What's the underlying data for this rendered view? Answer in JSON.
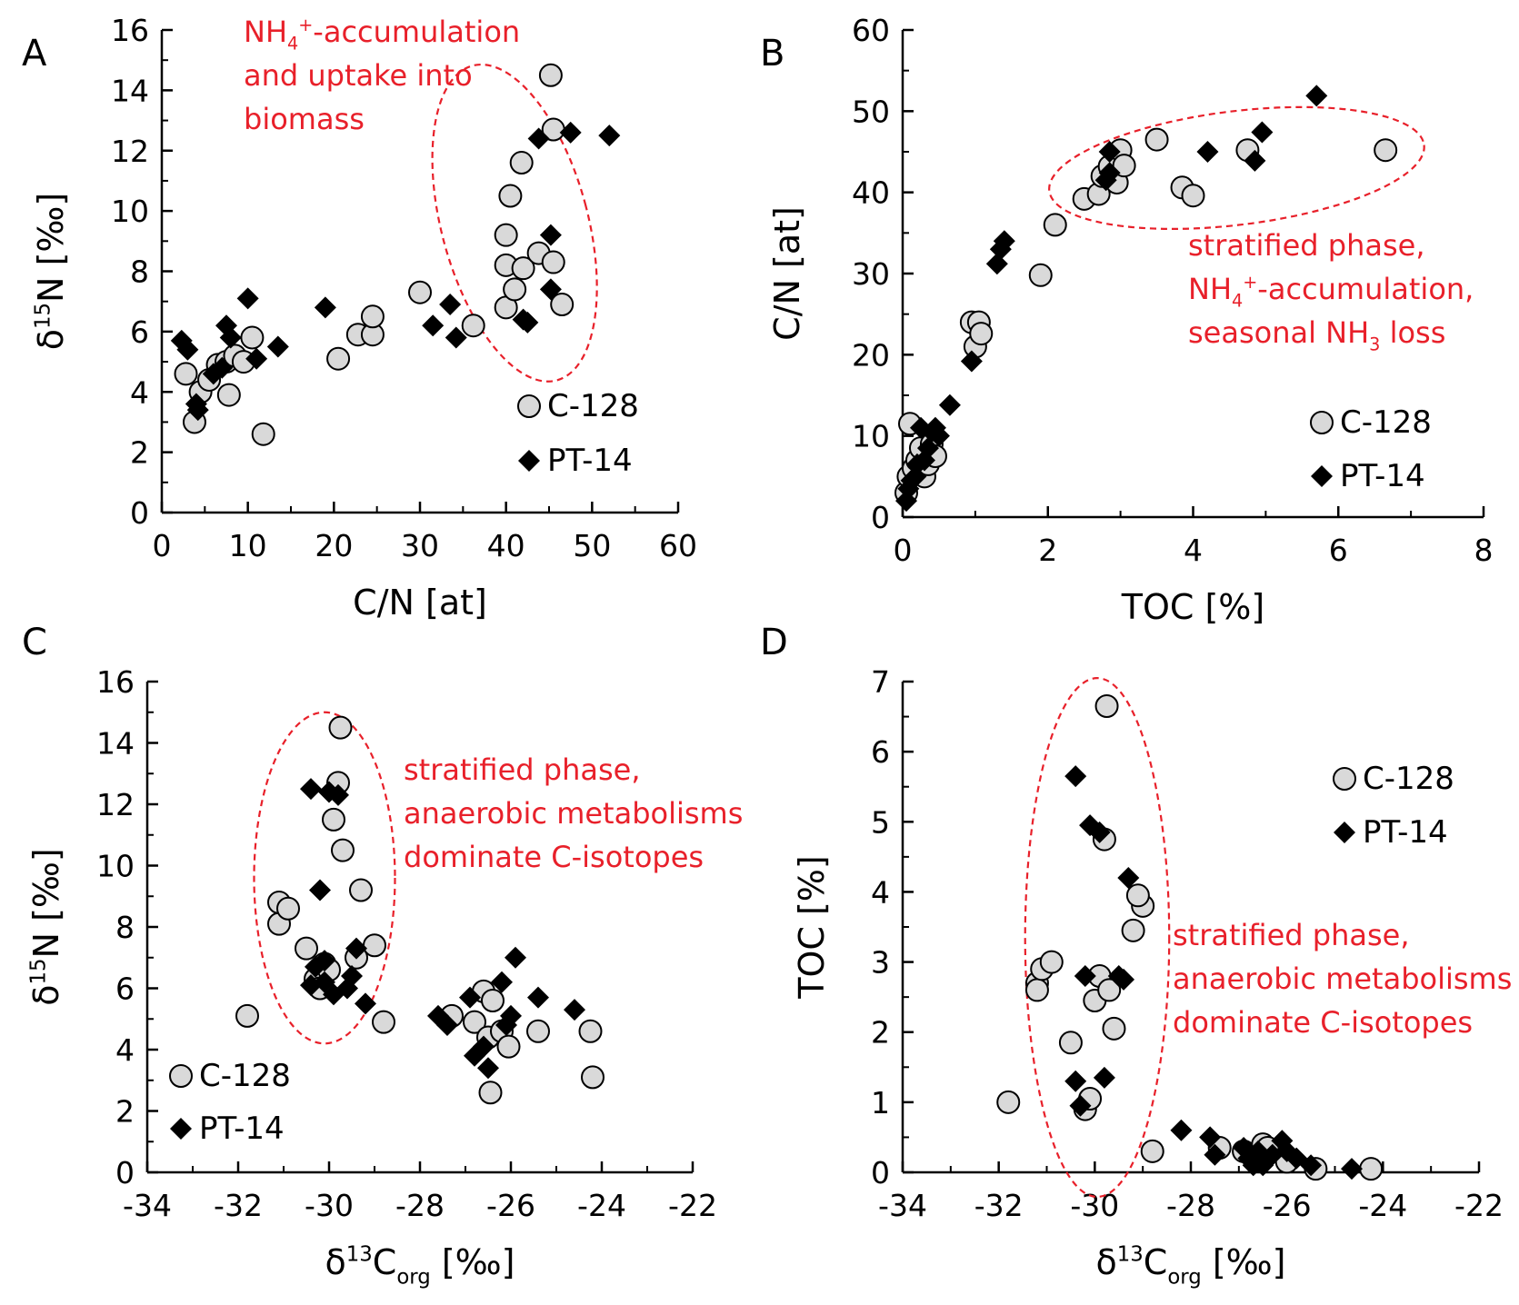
{
  "colors": {
    "axis": "#000000",
    "annotation": "#e8202a",
    "c128_fill": "#d9d9d9",
    "c128_stroke": "#000000",
    "pt14_fill": "#000000"
  },
  "legend_labels": [
    "C-128",
    "PT-14"
  ],
  "chart_data": [
    {
      "panel": "A",
      "type": "scatter",
      "xlabel": "C/N [at]",
      "ylabel": "δ15N [‰]",
      "xlim": [
        0,
        60
      ],
      "ylim": [
        0,
        16
      ],
      "xticks": [
        0,
        10,
        20,
        30,
        40,
        50,
        60
      ],
      "yticks": [
        0,
        2,
        4,
        6,
        8,
        10,
        12,
        14,
        16
      ],
      "legend_position": "bottom-right",
      "annotation_lines": [
        "NH4+-accumulation",
        "and uptake into",
        "biomass"
      ],
      "ellipse": {
        "cx": 41,
        "cy": 9.6,
        "rx": 8.5,
        "ry": 5.4,
        "rotate": -15
      },
      "series": [
        {
          "name": "C-128",
          "marker": "circle",
          "points": [
            [
              2.8,
              4.6
            ],
            [
              3.8,
              3
            ],
            [
              4.5,
              4
            ],
            [
              5.5,
              4.4
            ],
            [
              6.5,
              4.9
            ],
            [
              7.5,
              5
            ],
            [
              7.8,
              3.9
            ],
            [
              8.5,
              5.2
            ],
            [
              9.5,
              5
            ],
            [
              10.5,
              5.8
            ],
            [
              11.8,
              2.6
            ],
            [
              20.5,
              5.1
            ],
            [
              22.8,
              5.9
            ],
            [
              24.5,
              5.9
            ],
            [
              24.5,
              6.5
            ],
            [
              30,
              7.3
            ],
            [
              36.2,
              6.2
            ],
            [
              40,
              6.8
            ],
            [
              40,
              8.2
            ],
            [
              40,
              9.2
            ],
            [
              40.5,
              10.5
            ],
            [
              41,
              7.4
            ],
            [
              41.8,
              11.6
            ],
            [
              42,
              8.1
            ],
            [
              43.8,
              8.6
            ],
            [
              45.2,
              14.5
            ],
            [
              45.5,
              12.7
            ],
            [
              45.5,
              8.3
            ],
            [
              46.5,
              6.9
            ]
          ]
        },
        {
          "name": "PT-14",
          "marker": "diamond",
          "points": [
            [
              2.3,
              5.7
            ],
            [
              3,
              5.4
            ],
            [
              4,
              3.6
            ],
            [
              4.2,
              3.4
            ],
            [
              6,
              4.6
            ],
            [
              7,
              4.8
            ],
            [
              7.5,
              6.2
            ],
            [
              8,
              5.8
            ],
            [
              10,
              7.1
            ],
            [
              11,
              5.1
            ],
            [
              13.5,
              5.5
            ],
            [
              19,
              6.8
            ],
            [
              31.5,
              6.2
            ],
            [
              33.5,
              6.9
            ],
            [
              34.2,
              5.8
            ],
            [
              42,
              6.4
            ],
            [
              42.5,
              6.3
            ],
            [
              43.8,
              12.4
            ],
            [
              45.2,
              9.2
            ],
            [
              45.2,
              7.4
            ],
            [
              47.5,
              12.6
            ],
            [
              52,
              12.5
            ]
          ]
        }
      ]
    },
    {
      "panel": "B",
      "type": "scatter",
      "xlabel": "TOC [%]",
      "ylabel": "C/N [at]",
      "xlim": [
        0,
        8
      ],
      "ylim": [
        0,
        60
      ],
      "xticks": [
        0,
        2,
        4,
        6,
        8
      ],
      "yticks": [
        0,
        10,
        20,
        30,
        40,
        50,
        60
      ],
      "legend_position": "bottom-right",
      "annotation_lines": [
        "stratified phase,",
        "NH4+-accumulation,",
        "seasonal NH3 loss"
      ],
      "ellipse": {
        "cx": 4.6,
        "cy": 43,
        "rx": 2.6,
        "ry": 7,
        "rotate": -7
      },
      "series": [
        {
          "name": "C-128",
          "marker": "circle",
          "points": [
            [
              0.05,
              3
            ],
            [
              0.08,
              5
            ],
            [
              0.1,
              11.5
            ],
            [
              0.15,
              6
            ],
            [
              0.2,
              7
            ],
            [
              0.25,
              8.5
            ],
            [
              0.3,
              5
            ],
            [
              0.35,
              6.5
            ],
            [
              0.4,
              9
            ],
            [
              0.45,
              7.5
            ],
            [
              0.95,
              24
            ],
            [
              1.05,
              24
            ],
            [
              1.0,
              21
            ],
            [
              1.08,
              22.6
            ],
            [
              1.9,
              29.8
            ],
            [
              2.1,
              36
            ],
            [
              2.5,
              39.2
            ],
            [
              2.7,
              39.8
            ],
            [
              2.75,
              42
            ],
            [
              2.85,
              43.2
            ],
            [
              2.95,
              41.2
            ],
            [
              3.0,
              45.2
            ],
            [
              3.05,
              43.3
            ],
            [
              3.5,
              46.5
            ],
            [
              3.85,
              40.6
            ],
            [
              4.0,
              39.6
            ],
            [
              4.75,
              45.2
            ],
            [
              6.65,
              45.2
            ]
          ]
        },
        {
          "name": "PT-14",
          "marker": "diamond",
          "points": [
            [
              0.05,
              2
            ],
            [
              0.08,
              3.5
            ],
            [
              0.12,
              4.5
            ],
            [
              0.18,
              5
            ],
            [
              0.2,
              6.5
            ],
            [
              0.25,
              11
            ],
            [
              0.3,
              7
            ],
            [
              0.35,
              8.5
            ],
            [
              0.4,
              10.5
            ],
            [
              0.45,
              11
            ],
            [
              0.5,
              10
            ],
            [
              0.65,
              13.8
            ],
            [
              0.95,
              19.2
            ],
            [
              1.3,
              31.2
            ],
            [
              1.35,
              33
            ],
            [
              1.4,
              34
            ],
            [
              2.8,
              41.5
            ],
            [
              2.85,
              42.4
            ],
            [
              2.85,
              45
            ],
            [
              4.2,
              45
            ],
            [
              4.85,
              43.9
            ],
            [
              4.95,
              47.4
            ],
            [
              5.7,
              51.9
            ]
          ]
        }
      ]
    },
    {
      "panel": "C",
      "type": "scatter",
      "xlabel": "δ13Corg [‰]",
      "ylabel": "δ15N [‰]",
      "xlim": [
        -34,
        -22
      ],
      "ylim": [
        0,
        16
      ],
      "xticks": [
        -34,
        -32,
        -30,
        -28,
        -26,
        -24,
        -22
      ],
      "yticks": [
        0,
        2,
        4,
        6,
        8,
        10,
        12,
        14,
        16
      ],
      "legend_position": "bottom-left",
      "annotation_lines": [
        "stratified phase,",
        "anaerobic metabolisms",
        "dominate C-isotopes"
      ],
      "ellipse": {
        "cx": -30.1,
        "cy": 9.6,
        "rx": 1.55,
        "ry": 5.4,
        "rotate": 0
      },
      "series": [
        {
          "name": "C-128",
          "marker": "circle",
          "points": [
            [
              -31.8,
              5.1
            ],
            [
              -31.1,
              8.1
            ],
            [
              -31.1,
              8.8
            ],
            [
              -30.9,
              8.6
            ],
            [
              -30.5,
              7.3
            ],
            [
              -30.3,
              6.3
            ],
            [
              -30.2,
              6
            ],
            [
              -30.1,
              6.8
            ],
            [
              -30,
              6.6
            ],
            [
              -29.9,
              11.5
            ],
            [
              -29.8,
              12.7
            ],
            [
              -29.75,
              14.5
            ],
            [
              -29.7,
              10.5
            ],
            [
              -29.4,
              7
            ],
            [
              -29.3,
              9.2
            ],
            [
              -29,
              7.4
            ],
            [
              -28.8,
              4.9
            ],
            [
              -27.3,
              5.1
            ],
            [
              -26.8,
              4.9
            ],
            [
              -26.6,
              5.9
            ],
            [
              -26.5,
              4.4
            ],
            [
              -26.45,
              2.6
            ],
            [
              -26.4,
              5.6
            ],
            [
              -26.2,
              4.6
            ],
            [
              -26.05,
              4.1
            ],
            [
              -25.4,
              4.6
            ],
            [
              -24.25,
              4.6
            ],
            [
              -24.2,
              3.1
            ]
          ]
        },
        {
          "name": "PT-14",
          "marker": "diamond",
          "points": [
            [
              -30.4,
              12.5
            ],
            [
              -30.4,
              6.1
            ],
            [
              -30.3,
              6.7
            ],
            [
              -30.2,
              9.2
            ],
            [
              -30.1,
              6.9
            ],
            [
              -30.1,
              6.2
            ],
            [
              -30,
              12.4
            ],
            [
              -29.9,
              5.8
            ],
            [
              -29.8,
              12.3
            ],
            [
              -29.6,
              6
            ],
            [
              -29.5,
              6.4
            ],
            [
              -29.4,
              7.3
            ],
            [
              -29.2,
              5.5
            ],
            [
              -27.6,
              5.1
            ],
            [
              -27.4,
              4.8
            ],
            [
              -26.9,
              5.7
            ],
            [
              -26.8,
              3.8
            ],
            [
              -26.6,
              4.1
            ],
            [
              -26.5,
              3.4
            ],
            [
              -26.2,
              6.2
            ],
            [
              -26.1,
              4.8
            ],
            [
              -26.0,
              5.1
            ],
            [
              -25.9,
              7.0
            ],
            [
              -25.4,
              5.7
            ],
            [
              -24.6,
              5.3
            ]
          ]
        }
      ]
    },
    {
      "panel": "D",
      "type": "scatter",
      "xlabel": "δ13Corg [‰]",
      "ylabel": "TOC [%]",
      "xlim": [
        -34,
        -22
      ],
      "ylim": [
        0,
        7
      ],
      "xticks": [
        -34,
        -32,
        -30,
        -28,
        -26,
        -24,
        -22
      ],
      "yticks": [
        0,
        1,
        2,
        3,
        4,
        5,
        6,
        7
      ],
      "legend_position": "top-right",
      "annotation_lines": [
        "stratified phase,",
        "anaerobic metabolisms",
        "dominate C-isotopes"
      ],
      "ellipse": {
        "cx": -29.95,
        "cy": 3.35,
        "rx": 1.5,
        "ry": 3.7,
        "rotate": 0
      },
      "series": [
        {
          "name": "C-128",
          "marker": "circle",
          "points": [
            [
              -31.8,
              1
            ],
            [
              -31.2,
              2.7
            ],
            [
              -31.2,
              2.6
            ],
            [
              -31.1,
              2.9
            ],
            [
              -30.9,
              3.0
            ],
            [
              -30.5,
              1.85
            ],
            [
              -30.2,
              0.9
            ],
            [
              -30.1,
              1.05
            ],
            [
              -30.0,
              2.45
            ],
            [
              -29.9,
              2.8
            ],
            [
              -29.8,
              4.75
            ],
            [
              -29.75,
              6.65
            ],
            [
              -29.7,
              2.6
            ],
            [
              -29.6,
              2.05
            ],
            [
              -29.0,
              3.8
            ],
            [
              -29.2,
              3.45
            ],
            [
              -29.1,
              3.95
            ],
            [
              -28.8,
              0.3
            ],
            [
              -27.4,
              0.35
            ],
            [
              -26.9,
              0.3
            ],
            [
              -26.6,
              0.2
            ],
            [
              -26.5,
              0.4
            ],
            [
              -26.4,
              0.35
            ],
            [
              -26.0,
              0.15
            ],
            [
              -25.4,
              0.05
            ],
            [
              -24.25,
              0.05
            ]
          ]
        },
        {
          "name": "PT-14",
          "marker": "diamond",
          "points": [
            [
              -30.4,
              5.65
            ],
            [
              -30.4,
              1.3
            ],
            [
              -30.3,
              0.95
            ],
            [
              -30.2,
              2.8
            ],
            [
              -30.1,
              4.95
            ],
            [
              -29.9,
              4.85
            ],
            [
              -29.8,
              1.35
            ],
            [
              -29.5,
              2.8
            ],
            [
              -29.4,
              2.75
            ],
            [
              -29.3,
              4.2
            ],
            [
              -28.2,
              0.6
            ],
            [
              -27.6,
              0.5
            ],
            [
              -27.5,
              0.25
            ],
            [
              -26.9,
              0.35
            ],
            [
              -26.8,
              0.2
            ],
            [
              -26.7,
              0.1
            ],
            [
              -26.6,
              0.3
            ],
            [
              -26.5,
              0.1
            ],
            [
              -26.3,
              0.25
            ],
            [
              -26.1,
              0.45
            ],
            [
              -26.0,
              0.3
            ],
            [
              -25.8,
              0.2
            ],
            [
              -25.5,
              0.1
            ],
            [
              -24.65,
              0.05
            ]
          ]
        }
      ]
    }
  ]
}
